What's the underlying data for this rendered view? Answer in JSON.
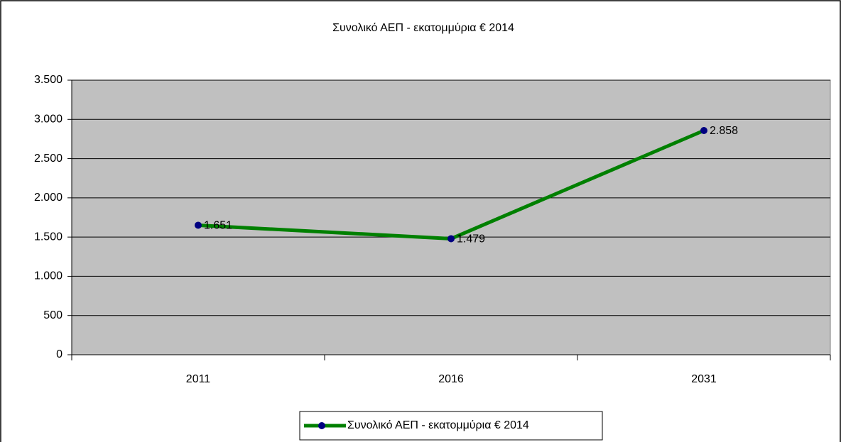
{
  "chart_data": {
    "type": "line",
    "title": "Συνολικό ΑΕΠ - εκατομμύρια € 2014",
    "categories": [
      "2011",
      "2016",
      "2031"
    ],
    "series": [
      {
        "name": "Συνολικό ΑΕΠ - εκατομμύρια € 2014",
        "color": "#008000",
        "marker_color": "#000080",
        "values": [
          1651,
          1479,
          2858
        ],
        "value_labels": [
          "1.651",
          "1.479",
          "2.858"
        ]
      }
    ],
    "ylim": [
      0,
      3500
    ],
    "yticks": [
      0,
      500,
      {
        "value": 1000,
        "label": "1.000"
      },
      {
        "value": 1500,
        "label": "1.500"
      },
      {
        "value": 2000,
        "label": "2.000"
      },
      {
        "value": 2500,
        "label": "2.500"
      },
      {
        "value": 3000,
        "label": "3.000"
      },
      {
        "value": 3500,
        "label": "3.500"
      }
    ],
    "grid": true,
    "legend": "bottom",
    "plot_background": "#c0c0c0"
  }
}
